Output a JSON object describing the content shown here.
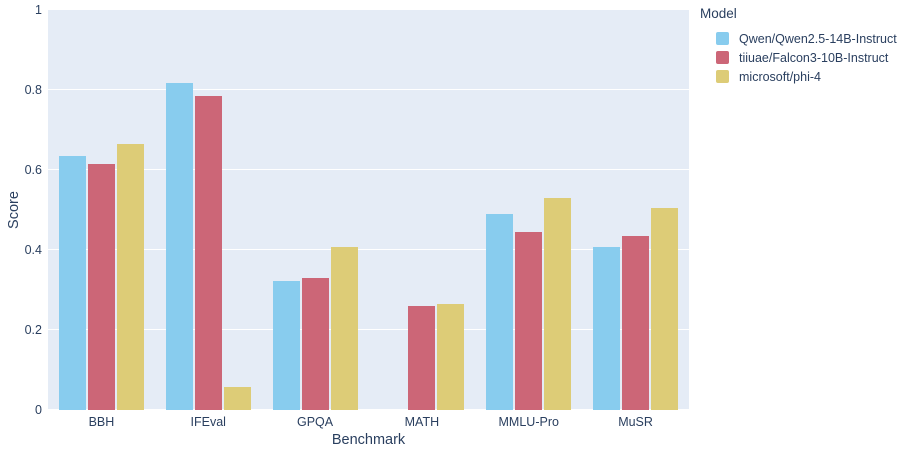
{
  "chart_data": {
    "type": "bar",
    "title": "",
    "xlabel": "Benchmark",
    "ylabel": "Score",
    "ylim": [
      0,
      1
    ],
    "yticks": [
      0,
      0.2,
      0.4,
      0.6,
      0.8,
      1
    ],
    "ytick_labels": [
      "0",
      "0.2",
      "0.4",
      "0.6",
      "0.8",
      "1"
    ],
    "categories": [
      "BBH",
      "IFEval",
      "GPQA",
      "MATH",
      "MMLU-Pro",
      "MuSR"
    ],
    "series": [
      {
        "name": "Qwen/Qwen2.5-14B-Instruct",
        "color": "#88CCEE",
        "values": [
          0.636,
          0.818,
          0.322,
          0.0,
          0.491,
          0.408
        ]
      },
      {
        "name": "tiiuae/Falcon3-10B-Instruct",
        "color": "#CC6677",
        "values": [
          0.614,
          0.786,
          0.331,
          0.259,
          0.446,
          0.435
        ]
      },
      {
        "name": "microsoft/phi-4",
        "color": "#DDCC77",
        "values": [
          0.666,
          0.058,
          0.408,
          0.264,
          0.531,
          0.506
        ]
      }
    ],
    "legend_title": "Model",
    "legend_position": "top-right",
    "grid": true,
    "plot_bg": "#E5ECF6",
    "grid_color": "#FFFFFF",
    "text_color": "#2A3F5F"
  }
}
